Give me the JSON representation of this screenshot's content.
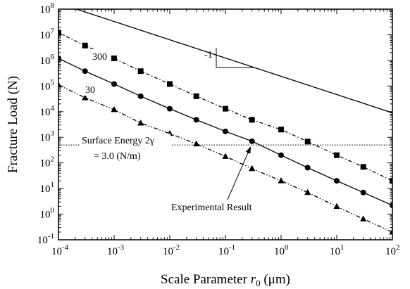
{
  "chart_data": {
    "type": "line",
    "title": "",
    "xlabel": "Scale Parameter r0 (μm)",
    "xlabel_parts": {
      "main": "Scale Parameter ",
      "var": "r",
      "sub": "0",
      "unit": " (μm)"
    },
    "ylabel": "Fracture Load (N)",
    "x_scale": "log",
    "y_scale": "log",
    "xlim": [
      0.0001,
      100
    ],
    "ylim": [
      0.1,
      100000000
    ],
    "grid": false,
    "legend": "none",
    "x_ticks": [
      {
        "value": 0.0001,
        "base": "10",
        "exp": "-4"
      },
      {
        "value": 0.001,
        "base": "10",
        "exp": "-3"
      },
      {
        "value": 0.01,
        "base": "10",
        "exp": "-2"
      },
      {
        "value": 0.1,
        "base": "10",
        "exp": "-1"
      },
      {
        "value": 1,
        "base": "10",
        "exp": "0"
      },
      {
        "value": 10,
        "base": "10",
        "exp": "1"
      },
      {
        "value": 100,
        "base": "10",
        "exp": "2"
      }
    ],
    "y_ticks": [
      {
        "value": 0.1,
        "base": "10",
        "exp": "-1"
      },
      {
        "value": 1,
        "base": "10",
        "exp": "0"
      },
      {
        "value": 10,
        "base": "10",
        "exp": "1"
      },
      {
        "value": 100,
        "base": "10",
        "exp": "2"
      },
      {
        "value": 1000,
        "base": "10",
        "exp": "3"
      },
      {
        "value": 10000,
        "base": "10",
        "exp": "4"
      },
      {
        "value": 100000,
        "base": "10",
        "exp": "5"
      },
      {
        "value": 1000000,
        "base": "10",
        "exp": "6"
      },
      {
        "value": 10000000,
        "base": "10",
        "exp": "7"
      },
      {
        "value": 100000000,
        "base": "10",
        "exp": "8"
      }
    ],
    "series": [
      {
        "name": "300",
        "marker": "square",
        "dash": "5,3,1.5,3",
        "x": [
          0.0001,
          0.0003,
          0.001,
          0.003,
          0.01,
          0.03,
          0.1,
          0.3,
          1,
          3,
          10,
          30,
          100
        ],
        "y": [
          12000000,
          3800000,
          1200000,
          380000,
          120000,
          40000,
          13000,
          4800,
          2000,
          680,
          200,
          70,
          20
        ]
      },
      {
        "name": "30",
        "marker": "circle",
        "dash": "",
        "x": [
          0.0001,
          0.0003,
          0.001,
          0.003,
          0.01,
          0.03,
          0.1,
          0.3,
          1,
          3,
          10,
          30,
          100
        ],
        "y": [
          1200000,
          380000,
          120000,
          40000,
          13000,
          4800,
          1700,
          700,
          200,
          65,
          20,
          7,
          2.2
        ]
      },
      {
        "name": "",
        "marker": "triangle",
        "dash": "6,2.5,1.5,2.5,1.5,2.5",
        "x": [
          0.0001,
          0.0003,
          0.001,
          0.003,
          0.01,
          0.03,
          0.1,
          0.3,
          1,
          3,
          10,
          30,
          100
        ],
        "y": [
          110000,
          35000,
          12000,
          3600,
          1400,
          550,
          180,
          60,
          20,
          7,
          2,
          0.65,
          0.2
        ]
      },
      {
        "name": "",
        "marker": "none",
        "dash": "",
        "x": [
          0.0001,
          100
        ],
        "y": [
          170000000,
          9000
        ]
      }
    ],
    "reference_line": {
      "y": 500,
      "style": "dotted"
    },
    "annotations": {
      "surface_energy_line1": "Surface Energy 2γ",
      "surface_energy_line2": "= 3.0 (N/m)",
      "experimental": "Experimental Result",
      "experimental_point": {
        "x": 0.3,
        "y": 560
      },
      "slope": "-1",
      "label_300": "300",
      "label_30": "30"
    }
  }
}
